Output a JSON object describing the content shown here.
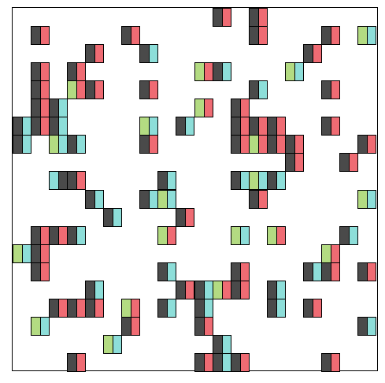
{
  "palette": {
    "D": "#4a4a4a",
    "R": "#ef6b73",
    "C": "#8dded9",
    "G": "#b3db82"
  },
  "grid": {
    "cols": 20,
    "rows": 20
  },
  "pieces": [
    {
      "c": 11,
      "r": 0,
      "colors": [
        "D",
        "R"
      ]
    },
    {
      "c": 13,
      "r": 0,
      "colors": [
        "D",
        "R"
      ]
    },
    {
      "c": 1,
      "r": 1,
      "colors": [
        "D",
        "R"
      ]
    },
    {
      "c": 6,
      "r": 1,
      "colors": [
        "D",
        "R"
      ]
    },
    {
      "c": 13,
      "r": 1,
      "colors": [
        "D",
        "R"
      ]
    },
    {
      "c": 17,
      "r": 1,
      "colors": [
        "D",
        "R"
      ]
    },
    {
      "c": 19,
      "r": 1,
      "colors": [
        "G",
        "C"
      ]
    },
    {
      "c": 4,
      "r": 2,
      "colors": [
        "D",
        "R"
      ]
    },
    {
      "c": 7,
      "r": 2,
      "colors": [
        "D",
        "C"
      ]
    },
    {
      "c": 16,
      "r": 2,
      "colors": [
        "D",
        "R"
      ]
    },
    {
      "c": 1,
      "r": 3,
      "colors": [
        "D",
        "R"
      ]
    },
    {
      "c": 3,
      "r": 3,
      "colors": [
        "D",
        "R"
      ]
    },
    {
      "c": 10,
      "r": 3,
      "colors": [
        "G",
        "R"
      ]
    },
    {
      "c": 11,
      "r": 3,
      "colors": [
        "D",
        "C"
      ]
    },
    {
      "c": 15,
      "r": 3,
      "colors": [
        "G",
        "C"
      ]
    },
    {
      "c": 1,
      "r": 4,
      "colors": [
        "D",
        "R"
      ]
    },
    {
      "c": 3,
      "r": 4,
      "colors": [
        "G",
        "R"
      ]
    },
    {
      "c": 4,
      "r": 4,
      "colors": [
        "D",
        "R"
      ]
    },
    {
      "c": 7,
      "r": 4,
      "colors": [
        "D",
        "R"
      ]
    },
    {
      "c": 13,
      "r": 4,
      "colors": [
        "D",
        "C"
      ]
    },
    {
      "c": 17,
      "r": 4,
      "colors": [
        "D",
        "R"
      ]
    },
    {
      "c": 1,
      "r": 5,
      "colors": [
        "D",
        "R"
      ]
    },
    {
      "c": 2,
      "r": 5,
      "colors": [
        "D",
        "C"
      ]
    },
    {
      "c": 10,
      "r": 5,
      "colors": [
        "G",
        "R"
      ]
    },
    {
      "c": 12,
      "r": 5,
      "colors": [
        "D",
        "R"
      ]
    },
    {
      "c": 0,
      "r": 6,
      "colors": [
        "D",
        "C"
      ]
    },
    {
      "c": 1,
      "r": 6,
      "colors": [
        "D",
        "R"
      ]
    },
    {
      "c": 2,
      "r": 6,
      "colors": [
        "D",
        "C"
      ]
    },
    {
      "c": 7,
      "r": 6,
      "colors": [
        "G",
        "C"
      ]
    },
    {
      "c": 9,
      "r": 6,
      "colors": [
        "D",
        "C"
      ]
    },
    {
      "c": 12,
      "r": 6,
      "colors": [
        "D",
        "R"
      ]
    },
    {
      "c": 13,
      "r": 6,
      "colors": [
        "D",
        "R"
      ]
    },
    {
      "c": 14,
      "r": 6,
      "colors": [
        "D",
        "R"
      ]
    },
    {
      "c": 17,
      "r": 6,
      "colors": [
        "D",
        "R"
      ]
    },
    {
      "c": 0,
      "r": 7,
      "colors": [
        "D",
        "C"
      ]
    },
    {
      "c": 2,
      "r": 7,
      "colors": [
        "G",
        "C"
      ]
    },
    {
      "c": 3,
      "r": 7,
      "colors": [
        "D",
        "C"
      ]
    },
    {
      "c": 7,
      "r": 7,
      "colors": [
        "D",
        "R"
      ]
    },
    {
      "c": 12,
      "r": 7,
      "colors": [
        "D",
        "R"
      ]
    },
    {
      "c": 13,
      "r": 7,
      "colors": [
        "G",
        "R"
      ]
    },
    {
      "c": 14,
      "r": 7,
      "colors": [
        "D",
        "R"
      ]
    },
    {
      "c": 15,
      "r": 7,
      "colors": [
        "D",
        "R"
      ]
    },
    {
      "c": 19,
      "r": 7,
      "colors": [
        "D",
        "R"
      ]
    },
    {
      "c": 15,
      "r": 8,
      "colors": [
        "D",
        "R"
      ]
    },
    {
      "c": 18,
      "r": 8,
      "colors": [
        "D",
        "R"
      ]
    },
    {
      "c": 2,
      "r": 9,
      "colors": [
        "C",
        "D"
      ]
    },
    {
      "c": 3,
      "r": 9,
      "colors": [
        "D",
        "R"
      ]
    },
    {
      "c": 8,
      "r": 9,
      "colors": [
        "D",
        "C"
      ]
    },
    {
      "c": 12,
      "r": 9,
      "colors": [
        "D",
        "C"
      ]
    },
    {
      "c": 13,
      "r": 9,
      "colors": [
        "G",
        "C"
      ]
    },
    {
      "c": 14,
      "r": 9,
      "colors": [
        "D",
        "C"
      ]
    },
    {
      "c": 4,
      "r": 10,
      "colors": [
        "D",
        "C"
      ]
    },
    {
      "c": 7,
      "r": 10,
      "colors": [
        "D",
        "C"
      ]
    },
    {
      "c": 8,
      "r": 10,
      "colors": [
        "G",
        "C"
      ]
    },
    {
      "c": 13,
      "r": 10,
      "colors": [
        "D",
        "R"
      ]
    },
    {
      "c": 19,
      "r": 10,
      "colors": [
        "G",
        "C"
      ]
    },
    {
      "c": 5,
      "r": 11,
      "colors": [
        "D",
        "C"
      ]
    },
    {
      "c": 9,
      "r": 11,
      "colors": [
        "D",
        "R"
      ]
    },
    {
      "c": 1,
      "r": 12,
      "colors": [
        "D",
        "R"
      ]
    },
    {
      "c": 2,
      "r": 12,
      "colors": [
        "D",
        "R"
      ]
    },
    {
      "c": 3,
      "r": 12,
      "colors": [
        "D",
        "C"
      ]
    },
    {
      "c": 8,
      "r": 12,
      "colors": [
        "G",
        "R"
      ]
    },
    {
      "c": 12,
      "r": 12,
      "colors": [
        "G",
        "C"
      ]
    },
    {
      "c": 14,
      "r": 12,
      "colors": [
        "G",
        "R"
      ]
    },
    {
      "c": 18,
      "r": 12,
      "colors": [
        "D",
        "C"
      ]
    },
    {
      "c": 0,
      "r": 13,
      "colors": [
        "G",
        "C"
      ]
    },
    {
      "c": 1,
      "r": 13,
      "colors": [
        "D",
        "R"
      ]
    },
    {
      "c": 17,
      "r": 13,
      "colors": [
        "G",
        "R"
      ]
    },
    {
      "c": 1,
      "r": 14,
      "colors": [
        "D",
        "R"
      ]
    },
    {
      "c": 8,
      "r": 14,
      "colors": [
        "D",
        "C"
      ]
    },
    {
      "c": 12,
      "r": 14,
      "colors": [
        "D",
        "R"
      ]
    },
    {
      "c": 16,
      "r": 14,
      "colors": [
        "D",
        "C"
      ]
    },
    {
      "c": 17,
      "r": 14,
      "colors": [
        "D",
        "R"
      ]
    },
    {
      "c": 19,
      "r": 14,
      "colors": [
        "D",
        "R"
      ]
    },
    {
      "c": 4,
      "r": 15,
      "colors": [
        "D",
        "C"
      ]
    },
    {
      "c": 9,
      "r": 15,
      "colors": [
        "D",
        "R"
      ]
    },
    {
      "c": 10,
      "r": 15,
      "colors": [
        "D",
        "C"
      ]
    },
    {
      "c": 11,
      "r": 15,
      "colors": [
        "G",
        "R"
      ]
    },
    {
      "c": 12,
      "r": 15,
      "colors": [
        "D",
        "R"
      ]
    },
    {
      "c": 14,
      "r": 15,
      "colors": [
        "D",
        "C"
      ]
    },
    {
      "c": 2,
      "r": 16,
      "colors": [
        "D",
        "R"
      ]
    },
    {
      "c": 3,
      "r": 16,
      "colors": [
        "D",
        "R"
      ]
    },
    {
      "c": 4,
      "r": 16,
      "colors": [
        "D",
        "R"
      ]
    },
    {
      "c": 6,
      "r": 16,
      "colors": [
        "G",
        "R"
      ]
    },
    {
      "c": 8,
      "r": 16,
      "colors": [
        "D",
        "C"
      ]
    },
    {
      "c": 10,
      "r": 16,
      "colors": [
        "D",
        "C"
      ]
    },
    {
      "c": 14,
      "r": 16,
      "colors": [
        "D",
        "C"
      ]
    },
    {
      "c": 16,
      "r": 16,
      "colors": [
        "D",
        "R"
      ]
    },
    {
      "c": 1,
      "r": 17,
      "colors": [
        "G",
        "C"
      ]
    },
    {
      "c": 6,
      "r": 17,
      "colors": [
        "D",
        "R"
      ]
    },
    {
      "c": 10,
      "r": 17,
      "colors": [
        "D",
        "R"
      ]
    },
    {
      "c": 19,
      "r": 17,
      "colors": [
        "D",
        "C"
      ]
    },
    {
      "c": 5,
      "r": 18,
      "colors": [
        "G",
        "C"
      ]
    },
    {
      "c": 11,
      "r": 18,
      "colors": [
        "D",
        "C"
      ]
    },
    {
      "c": 3,
      "r": 19,
      "colors": [
        "D",
        "R"
      ]
    },
    {
      "c": 10,
      "r": 19,
      "colors": [
        "D",
        "R"
      ]
    },
    {
      "c": 11,
      "r": 19,
      "colors": [
        "D",
        "C"
      ]
    },
    {
      "c": 12,
      "r": 19,
      "colors": [
        "D",
        "R"
      ]
    },
    {
      "c": 17,
      "r": 19,
      "colors": [
        "D",
        "R"
      ]
    }
  ]
}
